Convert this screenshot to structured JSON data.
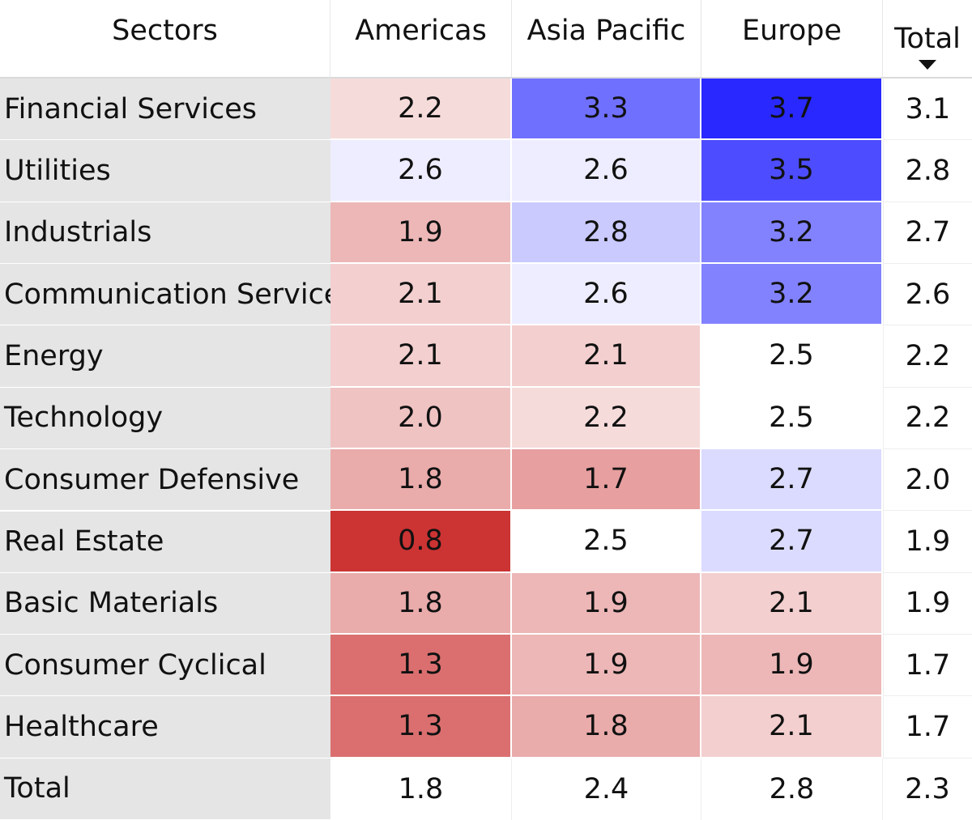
{
  "chart_data": {
    "type": "heatmap",
    "corner_label": "Sectors",
    "columns": [
      "Americas",
      "Asia Pacific",
      "Europe"
    ],
    "total_label": "Total",
    "sort": {
      "column": "Total",
      "direction": "descending"
    },
    "rows": [
      {
        "label": "Financial Services",
        "values": [
          2.2,
          3.3,
          3.7
        ],
        "total": 3.1
      },
      {
        "label": "Utilities",
        "values": [
          2.6,
          2.6,
          3.5
        ],
        "total": 2.8
      },
      {
        "label": "Industrials",
        "values": [
          1.9,
          2.8,
          3.2
        ],
        "total": 2.7
      },
      {
        "label": "Communication Services",
        "values": [
          2.1,
          2.6,
          3.2
        ],
        "total": 2.6
      },
      {
        "label": "Energy",
        "values": [
          2.1,
          2.1,
          2.5
        ],
        "total": 2.2
      },
      {
        "label": "Technology",
        "values": [
          2.0,
          2.2,
          2.5
        ],
        "total": 2.2
      },
      {
        "label": "Consumer Defensive",
        "values": [
          1.8,
          1.7,
          2.7
        ],
        "total": 2.0
      },
      {
        "label": "Real Estate",
        "values": [
          0.8,
          2.5,
          2.7
        ],
        "total": 1.9
      },
      {
        "label": "Basic Materials",
        "values": [
          1.8,
          1.9,
          2.1
        ],
        "total": 1.9
      },
      {
        "label": "Consumer Cyclical",
        "values": [
          1.3,
          1.9,
          1.9
        ],
        "total": 1.7
      },
      {
        "label": "Healthcare",
        "values": [
          1.3,
          1.8,
          2.1
        ],
        "total": 1.7
      }
    ],
    "column_totals": [
      1.8,
      2.4,
      2.8
    ],
    "grand_total": 2.3,
    "color_scale": {
      "low": "#cc3333",
      "mid": "#ffffff",
      "high": "#2929ff",
      "low_value": 0.8,
      "mid_value": 2.5,
      "high_value": 3.7
    }
  }
}
